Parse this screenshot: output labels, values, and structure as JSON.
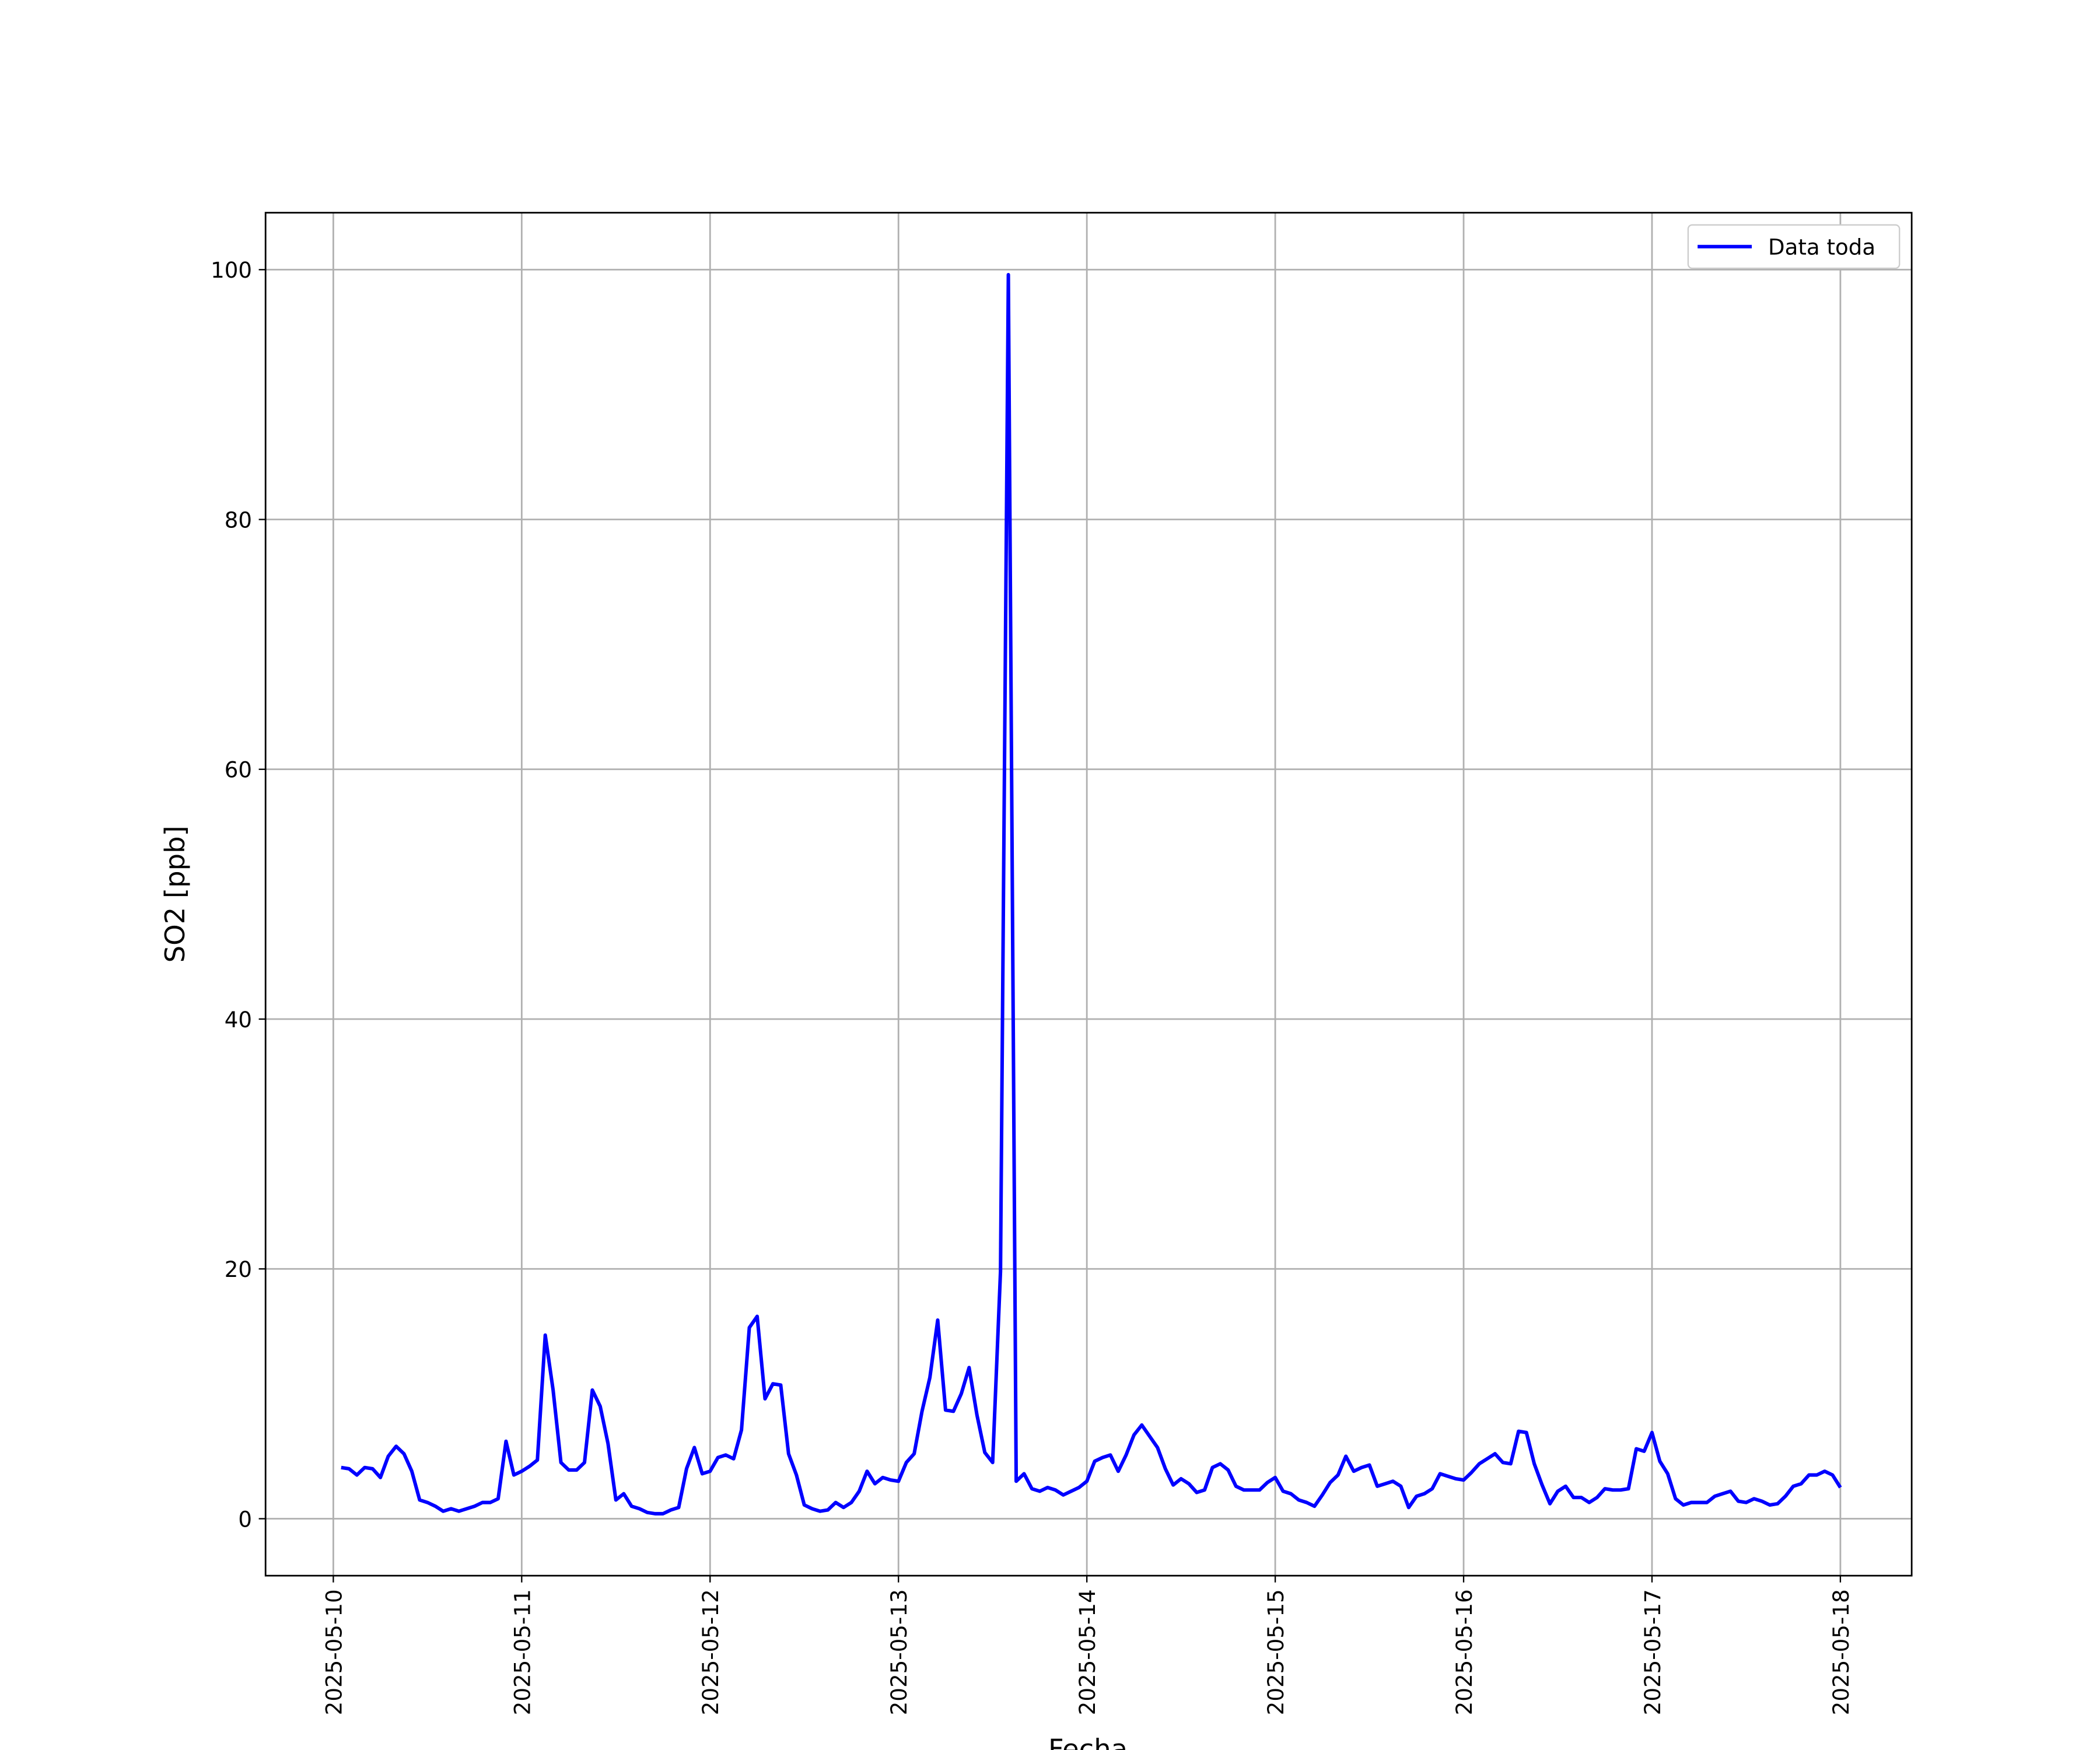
{
  "chart_data": {
    "type": "line",
    "xlabel": "Fecha",
    "ylabel": "SO2 [ppb]",
    "x": [
      "2025-05-10T01:00",
      "2025-05-10T02:00",
      "2025-05-10T03:00",
      "2025-05-10T04:00",
      "2025-05-10T05:00",
      "2025-05-10T06:00",
      "2025-05-10T07:00",
      "2025-05-10T08:00",
      "2025-05-10T09:00",
      "2025-05-10T10:00",
      "2025-05-10T11:00",
      "2025-05-10T12:00",
      "2025-05-10T13:00",
      "2025-05-10T14:00",
      "2025-05-10T15:00",
      "2025-05-10T16:00",
      "2025-05-10T17:00",
      "2025-05-10T18:00",
      "2025-05-10T19:00",
      "2025-05-10T20:00",
      "2025-05-10T21:00",
      "2025-05-10T22:00",
      "2025-05-10T23:00",
      "2025-05-11T00:00",
      "2025-05-11T01:00",
      "2025-05-11T02:00",
      "2025-05-11T03:00",
      "2025-05-11T04:00",
      "2025-05-11T05:00",
      "2025-05-11T06:00",
      "2025-05-11T07:00",
      "2025-05-11T08:00",
      "2025-05-11T09:00",
      "2025-05-11T10:00",
      "2025-05-11T11:00",
      "2025-05-11T12:00",
      "2025-05-11T13:00",
      "2025-05-11T14:00",
      "2025-05-11T15:00",
      "2025-05-11T16:00",
      "2025-05-11T17:00",
      "2025-05-11T18:00",
      "2025-05-11T19:00",
      "2025-05-11T20:00",
      "2025-05-11T21:00",
      "2025-05-11T22:00",
      "2025-05-11T23:00",
      "2025-05-12T00:00",
      "2025-05-12T01:00",
      "2025-05-12T02:00",
      "2025-05-12T03:00",
      "2025-05-12T04:00",
      "2025-05-12T05:00",
      "2025-05-12T06:00",
      "2025-05-12T07:00",
      "2025-05-12T08:00",
      "2025-05-12T09:00",
      "2025-05-12T10:00",
      "2025-05-12T11:00",
      "2025-05-12T12:00",
      "2025-05-12T13:00",
      "2025-05-12T14:00",
      "2025-05-12T15:00",
      "2025-05-12T16:00",
      "2025-05-12T17:00",
      "2025-05-12T18:00",
      "2025-05-12T19:00",
      "2025-05-12T20:00",
      "2025-05-12T21:00",
      "2025-05-12T22:00",
      "2025-05-12T23:00",
      "2025-05-13T00:00",
      "2025-05-13T01:00",
      "2025-05-13T02:00",
      "2025-05-13T03:00",
      "2025-05-13T04:00",
      "2025-05-13T05:00",
      "2025-05-13T06:00",
      "2025-05-13T07:00",
      "2025-05-13T08:00",
      "2025-05-13T09:00",
      "2025-05-13T10:00",
      "2025-05-13T11:00",
      "2025-05-13T12:00",
      "2025-05-13T13:00",
      "2025-05-13T14:00",
      "2025-05-13T15:00",
      "2025-05-13T16:00",
      "2025-05-13T17:00",
      "2025-05-13T18:00",
      "2025-05-13T19:00",
      "2025-05-13T20:00",
      "2025-05-13T21:00",
      "2025-05-13T22:00",
      "2025-05-13T23:00",
      "2025-05-14T00:00",
      "2025-05-14T01:00",
      "2025-05-14T02:00",
      "2025-05-14T03:00",
      "2025-05-14T04:00",
      "2025-05-14T05:00",
      "2025-05-14T06:00",
      "2025-05-14T07:00",
      "2025-05-14T08:00",
      "2025-05-14T09:00",
      "2025-05-14T10:00",
      "2025-05-14T11:00",
      "2025-05-14T12:00",
      "2025-05-14T13:00",
      "2025-05-14T14:00",
      "2025-05-14T15:00",
      "2025-05-14T16:00",
      "2025-05-14T17:00",
      "2025-05-14T18:00",
      "2025-05-14T19:00",
      "2025-05-14T20:00",
      "2025-05-14T21:00",
      "2025-05-14T22:00",
      "2025-05-14T23:00",
      "2025-05-15T00:00",
      "2025-05-15T01:00",
      "2025-05-15T02:00",
      "2025-05-15T03:00",
      "2025-05-15T04:00",
      "2025-05-15T05:00",
      "2025-05-15T06:00",
      "2025-05-15T07:00",
      "2025-05-15T08:00",
      "2025-05-15T09:00",
      "2025-05-15T10:00",
      "2025-05-15T11:00",
      "2025-05-15T12:00",
      "2025-05-15T13:00",
      "2025-05-15T14:00",
      "2025-05-15T15:00",
      "2025-05-15T16:00",
      "2025-05-15T17:00",
      "2025-05-15T18:00",
      "2025-05-15T19:00",
      "2025-05-15T20:00",
      "2025-05-15T21:00",
      "2025-05-15T22:00",
      "2025-05-15T23:00",
      "2025-05-16T00:00",
      "2025-05-16T01:00",
      "2025-05-16T02:00",
      "2025-05-16T03:00",
      "2025-05-16T04:00",
      "2025-05-16T05:00",
      "2025-05-16T06:00",
      "2025-05-16T07:00",
      "2025-05-16T08:00",
      "2025-05-16T09:00",
      "2025-05-16T10:00",
      "2025-05-16T11:00",
      "2025-05-16T12:00",
      "2025-05-16T13:00",
      "2025-05-16T14:00",
      "2025-05-16T15:00",
      "2025-05-16T16:00",
      "2025-05-16T17:00",
      "2025-05-16T18:00",
      "2025-05-16T19:00",
      "2025-05-16T20:00",
      "2025-05-16T21:00",
      "2025-05-16T22:00",
      "2025-05-16T23:00",
      "2025-05-17T00:00",
      "2025-05-17T01:00",
      "2025-05-17T02:00",
      "2025-05-17T03:00",
      "2025-05-17T04:00",
      "2025-05-17T05:00",
      "2025-05-17T06:00",
      "2025-05-17T07:00",
      "2025-05-17T08:00",
      "2025-05-17T09:00",
      "2025-05-17T10:00",
      "2025-05-17T11:00",
      "2025-05-17T12:00",
      "2025-05-17T13:00",
      "2025-05-17T14:00",
      "2025-05-17T15:00",
      "2025-05-17T16:00",
      "2025-05-17T17:00",
      "2025-05-17T18:00",
      "2025-05-17T19:00",
      "2025-05-17T20:00",
      "2025-05-17T21:00",
      "2025-05-17T22:00",
      "2025-05-17T23:00",
      "2025-05-18T00:00"
    ],
    "series": [
      {
        "name": "Data toda",
        "color": "#0000ff",
        "values": [
          4.1,
          4.0,
          3.5,
          4.1,
          4.0,
          3.3,
          5.0,
          5.8,
          5.2,
          3.8,
          1.5,
          1.3,
          1.0,
          0.6,
          0.8,
          0.6,
          0.8,
          1.0,
          1.3,
          1.3,
          1.6,
          6.2,
          3.5,
          3.8,
          4.2,
          4.7,
          14.7,
          10.3,
          4.5,
          3.9,
          3.9,
          4.5,
          10.3,
          9.0,
          6.0,
          1.5,
          2.0,
          1.0,
          0.8,
          0.5,
          0.4,
          0.4,
          0.7,
          0.9,
          4.0,
          5.7,
          3.6,
          3.8,
          4.9,
          5.1,
          4.8,
          7.1,
          15.3,
          16.2,
          9.6,
          10.8,
          10.7,
          5.2,
          3.5,
          1.1,
          0.8,
          0.6,
          0.7,
          1.3,
          0.9,
          1.3,
          2.2,
          3.8,
          2.8,
          3.3,
          3.1,
          3.0,
          4.5,
          5.2,
          8.6,
          11.3,
          15.9,
          8.7,
          8.6,
          10.0,
          12.1,
          8.3,
          5.3,
          4.5,
          19.8,
          99.6,
          3.0,
          3.6,
          2.4,
          2.2,
          2.5,
          2.3,
          1.9,
          2.2,
          2.5,
          3.0,
          4.6,
          4.9,
          5.1,
          3.8,
          5.1,
          6.7,
          7.5,
          6.6,
          5.7,
          4.0,
          2.7,
          3.2,
          2.8,
          2.1,
          2.3,
          4.1,
          4.4,
          3.9,
          2.6,
          2.3,
          2.3,
          2.3,
          2.9,
          3.3,
          2.2,
          2.0,
          1.5,
          1.3,
          1.0,
          1.9,
          2.9,
          3.5,
          5.0,
          3.8,
          4.1,
          4.3,
          2.6,
          2.8,
          3.0,
          2.6,
          0.9,
          1.8,
          2.0,
          2.4,
          3.6,
          3.4,
          3.2,
          3.1,
          3.7,
          4.4,
          4.8,
          5.2,
          4.5,
          4.4,
          7.0,
          6.9,
          4.4,
          2.7,
          1.2,
          2.2,
          2.6,
          1.7,
          1.7,
          1.3,
          1.7,
          2.4,
          2.3,
          2.3,
          2.4,
          5.6,
          5.4,
          6.9,
          4.6,
          3.6,
          1.6,
          1.1,
          1.3,
          1.3,
          1.3,
          1.8,
          2.0,
          2.2,
          1.4,
          1.3,
          1.6,
          1.4,
          1.1,
          1.2,
          1.8,
          2.6,
          2.8,
          3.5,
          3.5,
          3.8,
          3.5,
          2.5
        ]
      }
    ],
    "xlim": [
      "2025-05-09T15:22",
      "2025-05-18T09:05"
    ],
    "xticks": [
      "2025-05-10",
      "2025-05-11",
      "2025-05-12",
      "2025-05-13",
      "2025-05-14",
      "2025-05-15",
      "2025-05-16",
      "2025-05-17",
      "2025-05-18"
    ],
    "ylim": [
      -4.56,
      104.56
    ],
    "yticks": [
      0,
      20,
      40,
      60,
      80,
      100
    ],
    "grid": true,
    "legend": "upper right"
  }
}
